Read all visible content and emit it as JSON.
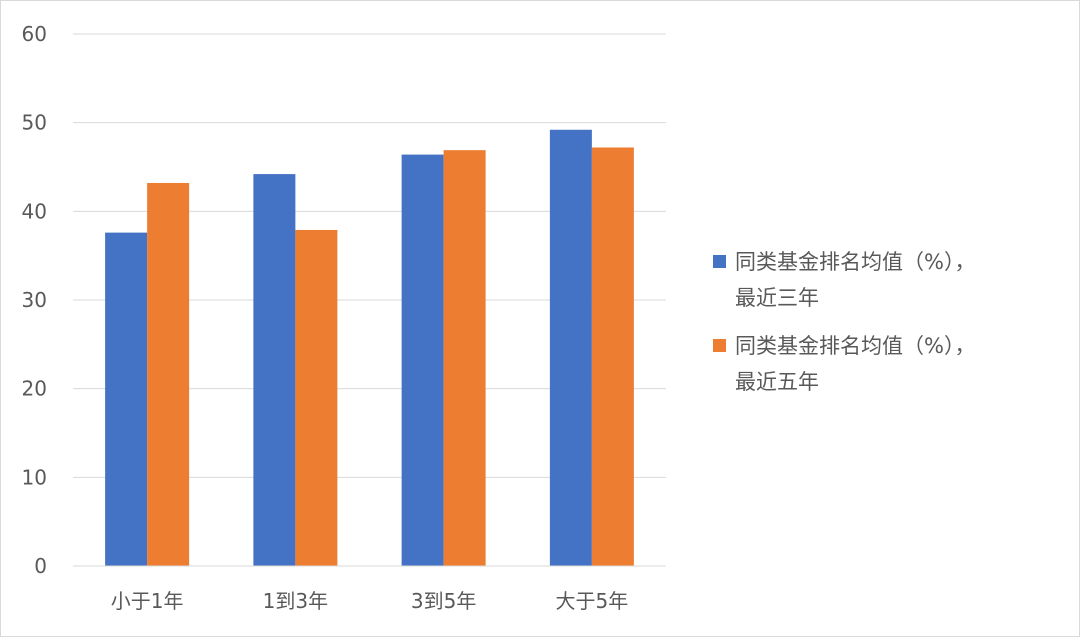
{
  "chart_data": {
    "type": "bar",
    "title": "",
    "xlabel": "",
    "ylabel": "",
    "categories": [
      "小于1年",
      "1到3年",
      "3到5年",
      "大于5年"
    ],
    "series": [
      {
        "name": "同类基金排名均值（%），最近三年",
        "name_lines": [
          "同类基金排名均值（%），",
          "最近三年"
        ],
        "color": "#4472c4",
        "values": [
          37.6,
          44.2,
          46.4,
          49.2
        ]
      },
      {
        "name": "同类基金排名均值（%），最近五年",
        "name_lines": [
          "同类基金排名均值（%），",
          "最近五年"
        ],
        "color": "#ed7d31",
        "values": [
          43.2,
          37.9,
          46.9,
          47.2
        ]
      }
    ],
    "ylim": [
      0,
      60
    ],
    "yticks": [
      0,
      10,
      20,
      30,
      40,
      50,
      60
    ],
    "grid": true,
    "legend_position": "right"
  }
}
